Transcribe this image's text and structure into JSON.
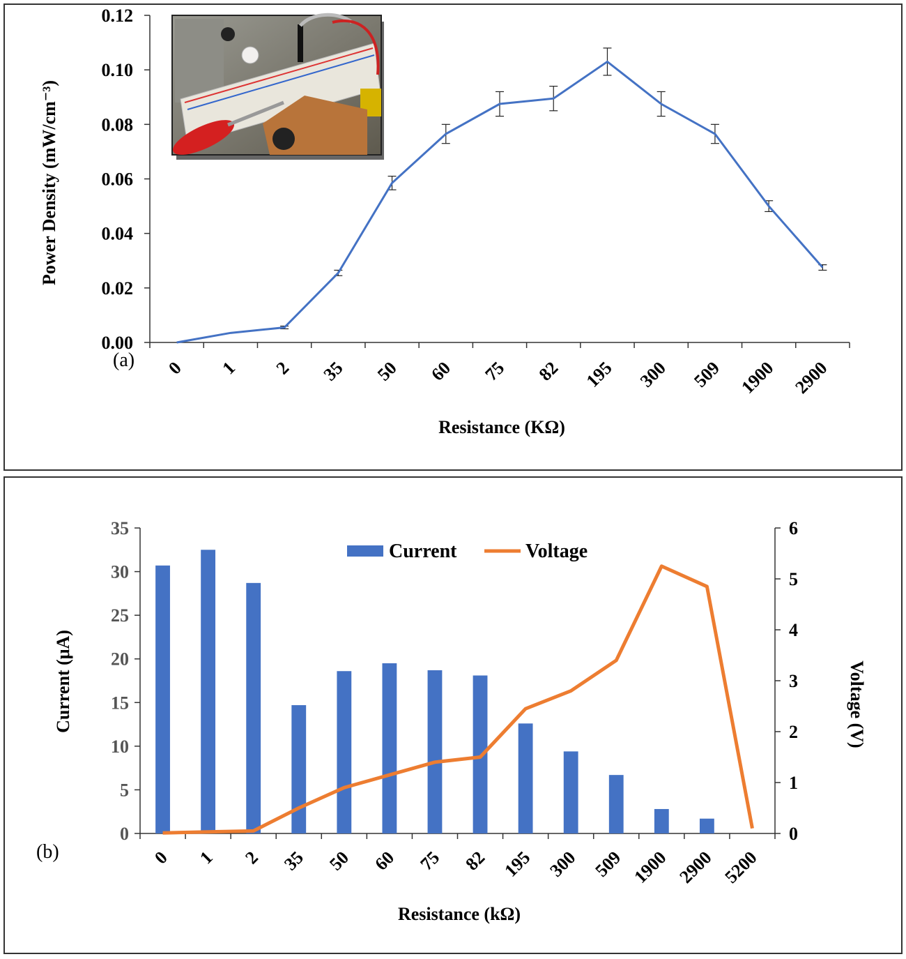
{
  "chart_data": [
    {
      "type": "line",
      "panel_label": "(a)",
      "title": "",
      "xlabel": "Resistance (KΩ)",
      "ylabel": "Power Density (mW/cm⁻³)",
      "categories": [
        "0",
        "1",
        "2",
        "35",
        "50",
        "60",
        "75",
        "82",
        "195",
        "300",
        "509",
        "1900",
        "2900"
      ],
      "ylim": [
        0,
        0.12
      ],
      "yticks": [
        "0.00",
        "0.02",
        "0.04",
        "0.06",
        "0.08",
        "0.10",
        "0.12"
      ],
      "series": [
        {
          "name": "Power Density",
          "color": "#4472C4",
          "values": [
            0.0,
            0.0035,
            0.0055,
            0.0255,
            0.0585,
            0.0765,
            0.0875,
            0.0895,
            0.103,
            0.0875,
            0.0765,
            0.05,
            0.0275
          ],
          "error": [
            0.0,
            0.0,
            0.0005,
            0.001,
            0.0025,
            0.0035,
            0.0045,
            0.0045,
            0.005,
            0.0045,
            0.0035,
            0.002,
            0.001
          ]
        }
      ],
      "inset": "photo of breadboard circuit with LED and clip leads"
    },
    {
      "type": "bar",
      "panel_label": "(b)",
      "title": "",
      "xlabel": "Resistance (kΩ)",
      "ylabel": "Current (μA)",
      "y2label": "Voltage (V)",
      "categories": [
        "0",
        "1",
        "2",
        "35",
        "50",
        "60",
        "75",
        "82",
        "195",
        "300",
        "509",
        "1900",
        "2900",
        "5200"
      ],
      "ylim": [
        0,
        35
      ],
      "y2lim": [
        0,
        6
      ],
      "yticks": [
        "0",
        "5",
        "10",
        "15",
        "20",
        "25",
        "30",
        "35"
      ],
      "y2ticks": [
        "0",
        "1",
        "2",
        "3",
        "4",
        "5",
        "6"
      ],
      "legend": [
        "Current",
        "Voltage"
      ],
      "series": [
        {
          "name": "Current",
          "kind": "bar",
          "color": "#4472C4",
          "values": [
            30.7,
            32.5,
            28.7,
            14.7,
            18.6,
            19.5,
            18.7,
            18.1,
            12.6,
            9.4,
            6.7,
            2.8,
            1.7,
            0
          ]
        },
        {
          "name": "Voltage",
          "kind": "line",
          "axis": "right",
          "color": "#ED7D31",
          "values": [
            0.01,
            0.03,
            0.05,
            0.5,
            0.9,
            1.15,
            1.4,
            1.5,
            2.45,
            2.8,
            3.4,
            5.25,
            4.85,
            0.1
          ]
        }
      ]
    }
  ]
}
